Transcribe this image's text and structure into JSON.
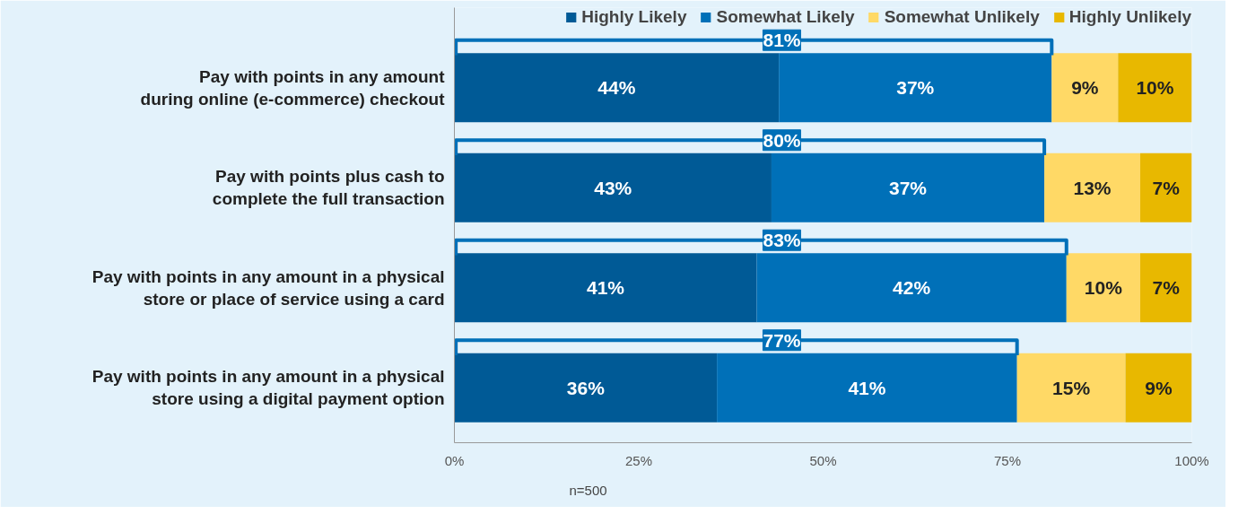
{
  "chart_data": {
    "type": "bar",
    "orientation": "horizontal",
    "stacked": true,
    "categories": [
      "Pay with points in any amount during online (e-commerce) checkout",
      "Pay with points plus cash to complete the full transaction",
      "Pay with points in any amount in a physical store or place of service using a card",
      "Pay with points in any amount in a physical store using a digital payment option"
    ],
    "series": [
      {
        "name": "Highly Likely",
        "color": "#005a96",
        "values": [
          44,
          43,
          41,
          35.6
        ],
        "value_labels": [
          "44%",
          "43%",
          "41%",
          "36%"
        ]
      },
      {
        "name": "Somewhat Likely",
        "color": "#0070b8",
        "values": [
          37,
          37,
          42,
          40.7
        ],
        "value_labels": [
          "37%",
          "37%",
          "42%",
          "41%"
        ]
      },
      {
        "name": "Somewhat Unlikely",
        "color": "#ffd966",
        "values": [
          9,
          13,
          10,
          14.7
        ],
        "value_labels": [
          "9%",
          "13%",
          "10%",
          "15%"
        ]
      },
      {
        "name": "Highly Unlikely",
        "color": "#e8b800",
        "values": [
          10,
          7,
          7,
          9
        ],
        "value_labels": [
          "10%",
          "7%",
          "7%",
          "9%"
        ]
      }
    ],
    "xlim": [
      0,
      100
    ],
    "xticks": [
      {
        "value": 0,
        "label": "0%"
      },
      {
        "value": 25,
        "label": "25%"
      },
      {
        "value": 50,
        "label": "50%"
      },
      {
        "value": 75,
        "label": "75%"
      },
      {
        "value": 100,
        "label": "100%"
      }
    ],
    "grid": false,
    "legend": "top",
    "annotations": [
      "81%",
      "80%",
      "83%",
      "77%",
      "n=500"
    ]
  }
}
